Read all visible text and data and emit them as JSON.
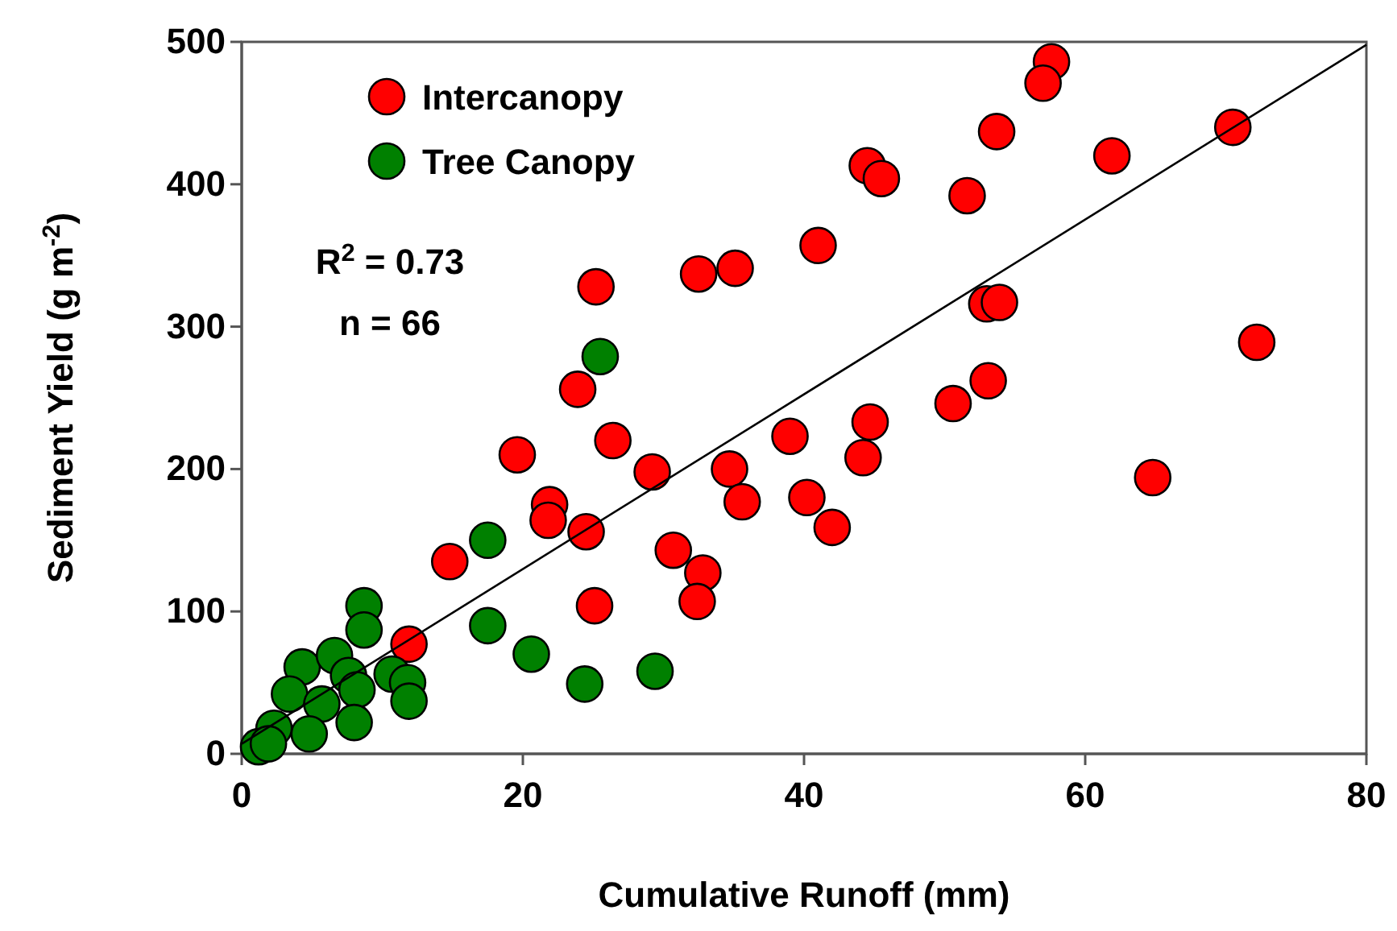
{
  "chart_data": {
    "type": "scatter",
    "xlabel": "Cumulative Runoff (mm)",
    "ylabel": "Sediment Yield (g m$^{-2}$)",
    "xlim": [
      0,
      80
    ],
    "ylim": [
      0,
      500
    ],
    "xticks": [
      0,
      20,
      40,
      60,
      80
    ],
    "yticks": [
      0,
      100,
      200,
      300,
      400,
      500
    ],
    "legend": "top left",
    "marker": "circle",
    "grid": false,
    "annotations": [
      "R$^{2}$ = 0.73",
      "n = 66"
    ],
    "series": [
      {
        "name": "Intercanopy",
        "color": "#ff0000",
        "x": [
          57.6,
          57.0,
          53.7,
          44.5,
          45.5,
          51.6,
          61.9,
          70.5,
          41.0,
          25.2,
          32.5,
          35.1,
          53.0,
          53.9,
          72.2,
          53.1,
          50.6,
          44.7,
          44.2,
          39.0,
          40.2,
          42.0,
          64.8,
          23.9,
          26.4,
          19.6,
          29.2,
          34.7,
          35.6,
          21.9,
          21.8,
          24.5,
          30.7,
          32.8,
          32.4,
          25.1,
          14.8,
          11.9
        ],
        "values": [
          486,
          471,
          437,
          413,
          404,
          392,
          420,
          440,
          357,
          328,
          337,
          341,
          316,
          317,
          289,
          262,
          246,
          233,
          208,
          223,
          180,
          159,
          194,
          256,
          220,
          210,
          198,
          200,
          177,
          175,
          164,
          156,
          143,
          127,
          107,
          104,
          135,
          77
        ]
      },
      {
        "name": "Tree Canopy",
        "color": "#008000",
        "x": [
          25.5,
          24.4,
          29.4,
          20.6,
          17.5,
          17.5,
          8.7,
          8.7,
          4.3,
          6.6,
          3.4,
          7.6,
          8.2,
          10.7,
          11.8,
          11.9,
          5.7,
          8.0,
          4.8,
          2.3,
          1.2,
          1.9
        ],
        "values": [
          279,
          49,
          58,
          70,
          150,
          90,
          104,
          87,
          61,
          69,
          42,
          55,
          45,
          56,
          50,
          37,
          35,
          22,
          14,
          18,
          5,
          7
        ]
      },
      {
        "type": "line",
        "color": "#000000",
        "marker": "none",
        "x": [
          0,
          80
        ],
        "values": [
          7,
          498
        ]
      }
    ]
  }
}
